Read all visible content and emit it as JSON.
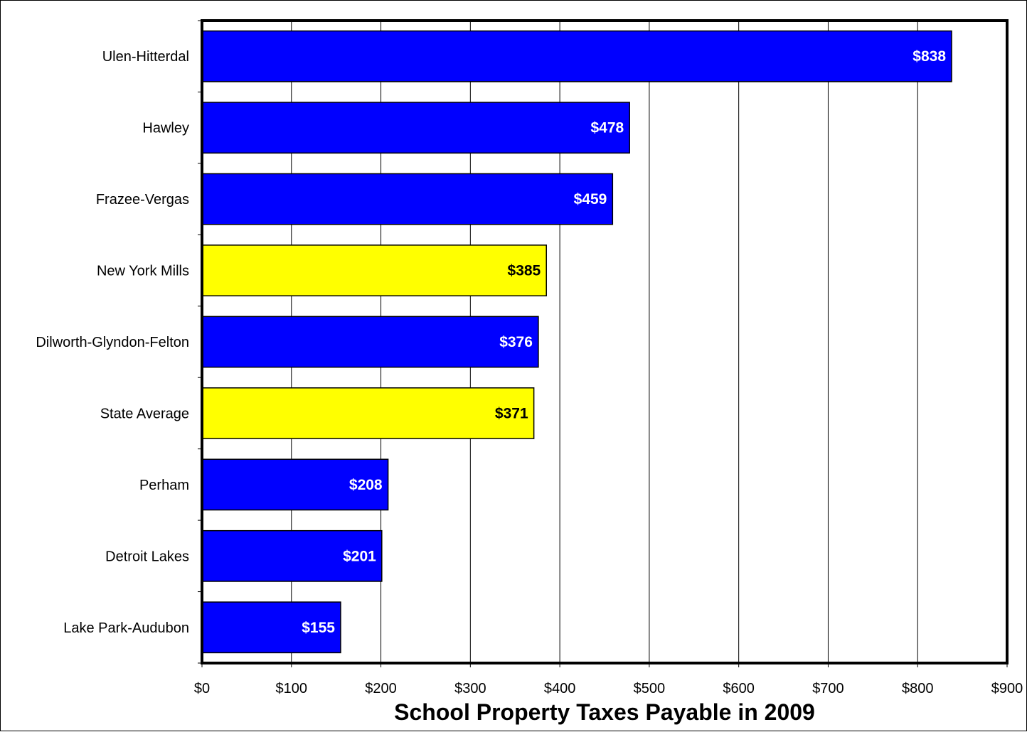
{
  "chart_data": {
    "type": "bar",
    "orientation": "horizontal",
    "title": "",
    "xlabel": "School Property Taxes Payable in 2009",
    "ylabel": "",
    "categories": [
      "Ulen-Hitterdal",
      "Hawley",
      "Frazee-Vergas",
      "New York Mills",
      "Dilworth-Glyndon-Felton",
      "State Average",
      "Perham",
      "Detroit Lakes",
      "Lake Park-Audubon"
    ],
    "values": [
      838,
      478,
      459,
      385,
      376,
      371,
      208,
      201,
      155
    ],
    "data_labels": [
      "$838",
      "$478",
      "$459",
      "$385",
      "$376",
      "$371",
      "$208",
      "$201",
      "$155"
    ],
    "highlighted": [
      false,
      false,
      false,
      true,
      false,
      true,
      false,
      false,
      false
    ],
    "xlim": [
      0,
      900
    ],
    "x_ticks": [
      0,
      100,
      200,
      300,
      400,
      500,
      600,
      700,
      800,
      900
    ],
    "x_tick_labels": [
      "$0",
      "$100",
      "$200",
      "$300",
      "$400",
      "$500",
      "$600",
      "$700",
      "$800",
      "$900"
    ],
    "grid": "vertical",
    "legend": "none",
    "colors": {
      "bar": "#0000ff",
      "highlight_bar": "#ffff00",
      "label_on_bar": "#ffffff",
      "label_on_highlight": "#000000",
      "gridline": "#000000",
      "plot_background": "#ffffff"
    }
  }
}
